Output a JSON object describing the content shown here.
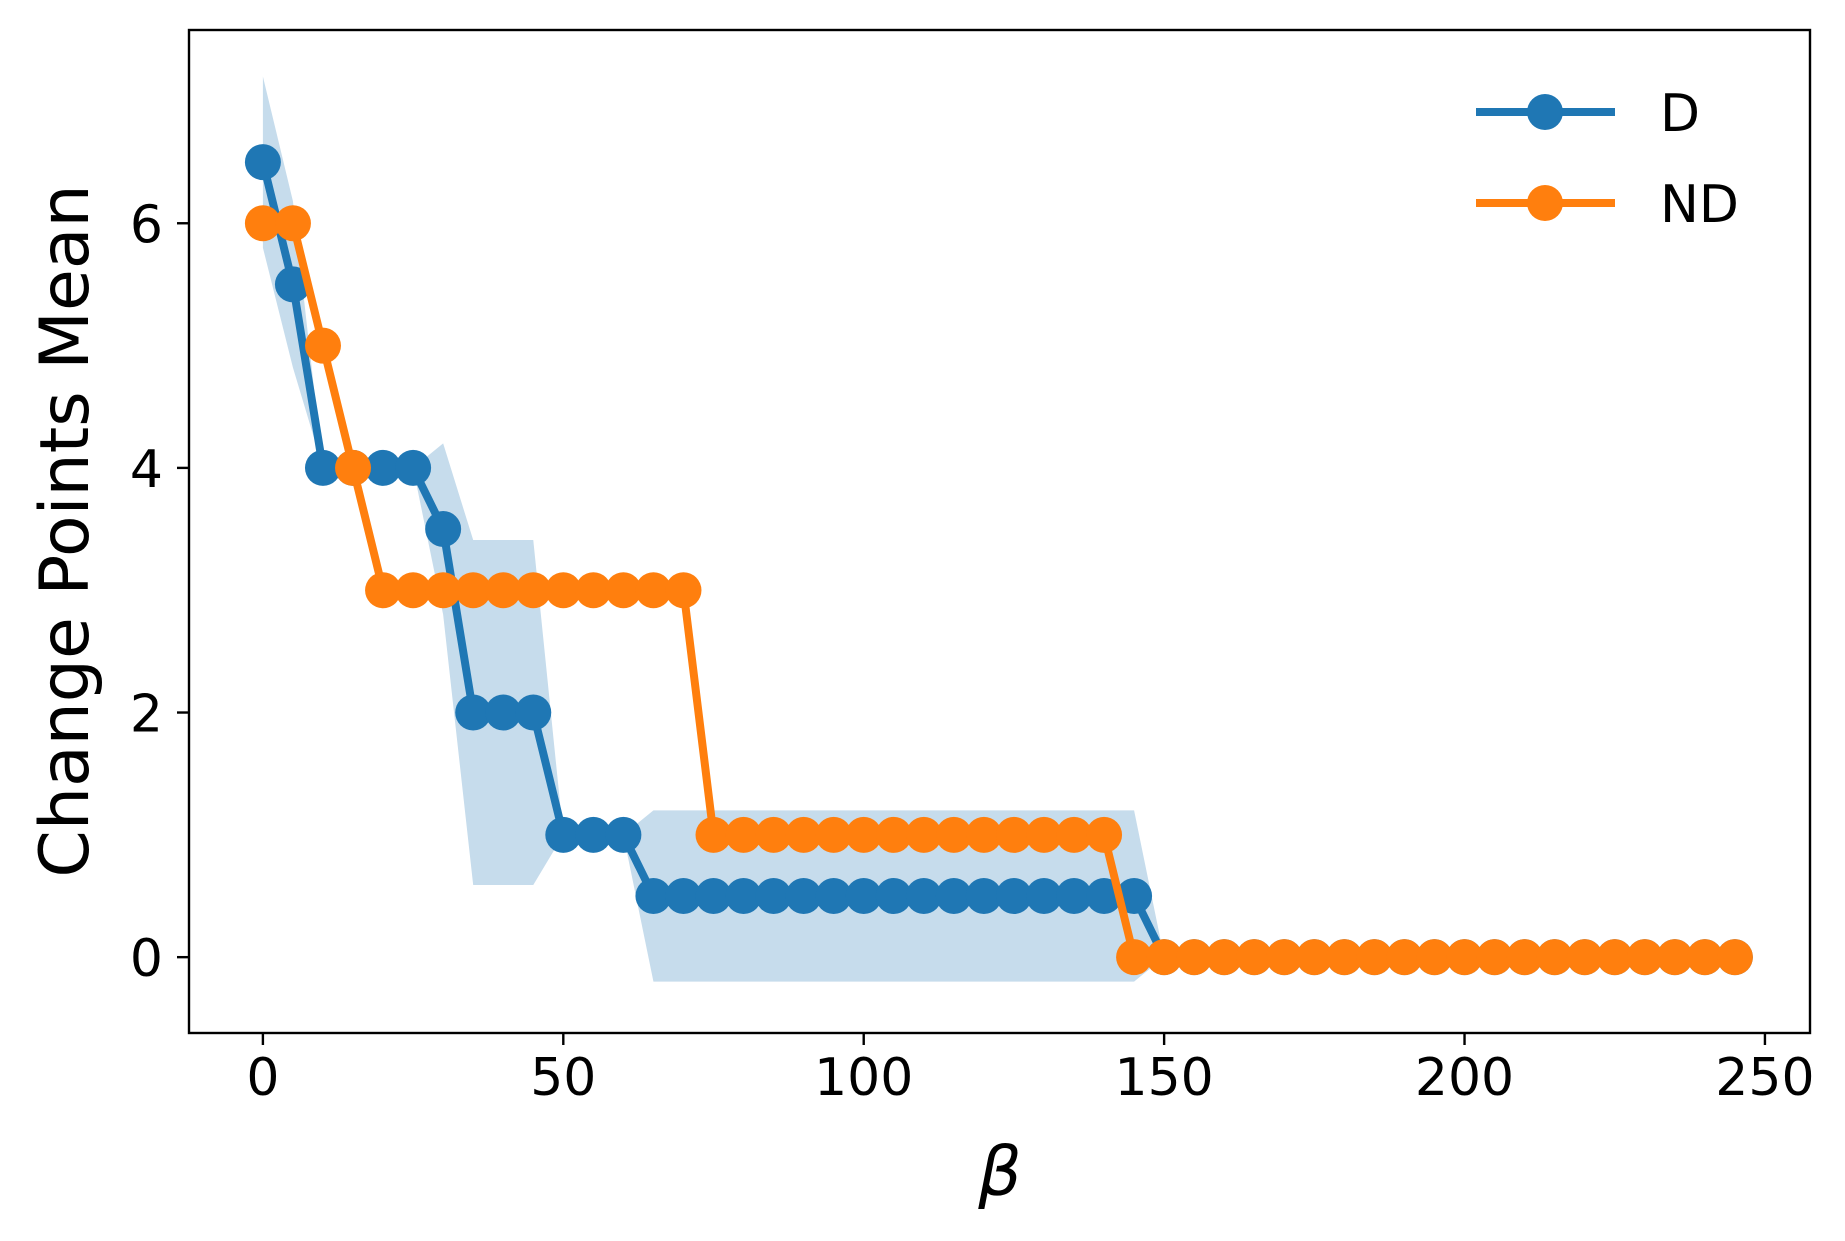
{
  "chart_data": {
    "type": "line",
    "title": "",
    "xlabel": "β",
    "ylabel": "Change Points Mean",
    "xlim": [
      -12.3,
      257.5
    ],
    "ylim": [
      -0.62,
      7.58
    ],
    "xticks": [
      0,
      50,
      100,
      150,
      200,
      250
    ],
    "xtick_labels": [
      "0",
      "50",
      "100",
      "150",
      "200",
      "250"
    ],
    "yticks": [
      0,
      2,
      4,
      6
    ],
    "ytick_labels": [
      "0",
      "2",
      "4",
      "6"
    ],
    "grid": false,
    "legend_position": "top-right",
    "x": [
      0,
      5,
      10,
      15,
      20,
      25,
      30,
      35,
      40,
      45,
      50,
      55,
      60,
      65,
      70,
      75,
      80,
      85,
      90,
      95,
      100,
      105,
      110,
      115,
      120,
      125,
      130,
      135,
      140,
      145,
      150,
      155,
      160,
      165,
      170,
      175,
      180,
      185,
      190,
      195,
      200,
      205,
      210,
      215,
      220,
      225,
      230,
      235,
      240,
      245
    ],
    "series": [
      {
        "name": "D",
        "color": "#1f77b4",
        "values": [
          6.5,
          5.5,
          4,
          4,
          4,
          4,
          3.5,
          2,
          2,
          2,
          1,
          1,
          1,
          0.5,
          0.5,
          0.5,
          0.5,
          0.5,
          0.5,
          0.5,
          0.5,
          0.5,
          0.5,
          0.5,
          0.5,
          0.5,
          0.5,
          0.5,
          0.5,
          0.5,
          0,
          0,
          0,
          0,
          0,
          0,
          0,
          0,
          0,
          0,
          0,
          0,
          0,
          0,
          0,
          0,
          0,
          0,
          0,
          0
        ],
        "band_std": [
          0.7,
          0.68,
          0,
          0,
          0,
          0,
          0.7,
          1.41,
          1.41,
          1.41,
          0,
          0,
          0,
          0.7,
          0.7,
          0.7,
          0.7,
          0.7,
          0.7,
          0.7,
          0.7,
          0.7,
          0.7,
          0.7,
          0.7,
          0.7,
          0.7,
          0.7,
          0.7,
          0.7,
          0,
          0,
          0,
          0,
          0,
          0,
          0,
          0,
          0,
          0,
          0,
          0,
          0,
          0,
          0,
          0,
          0,
          0,
          0,
          0
        ],
        "band_color": "#c6dcec"
      },
      {
        "name": "ND",
        "color": "#ff7f0e",
        "values": [
          6,
          6,
          5,
          4,
          3,
          3,
          3,
          3,
          3,
          3,
          3,
          3,
          3,
          3,
          3,
          1,
          1,
          1,
          1,
          1,
          1,
          1,
          1,
          1,
          1,
          1,
          1,
          1,
          1,
          0,
          0,
          0,
          0,
          0,
          0,
          0,
          0,
          0,
          0,
          0,
          0,
          0,
          0,
          0,
          0,
          0,
          0,
          0,
          0,
          0
        ],
        "band_std": [
          0,
          0,
          0,
          0,
          0,
          0,
          0,
          0,
          0,
          0,
          0,
          0,
          0,
          0,
          0,
          0,
          0,
          0,
          0,
          0,
          0,
          0,
          0,
          0,
          0,
          0,
          0,
          0,
          0,
          0,
          0,
          0,
          0,
          0,
          0,
          0,
          0,
          0,
          0,
          0,
          0,
          0,
          0,
          0,
          0,
          0,
          0,
          0,
          0,
          0
        ]
      }
    ]
  }
}
